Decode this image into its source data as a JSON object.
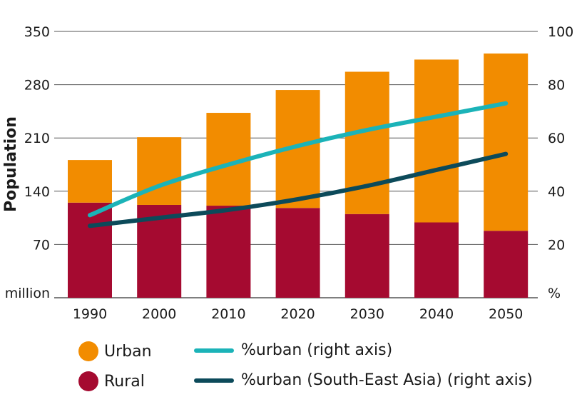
{
  "chart_data": {
    "type": "bar",
    "stacked": true,
    "categories": [
      "1990",
      "2000",
      "2010",
      "2020",
      "2030",
      "2040",
      "2050"
    ],
    "series": [
      {
        "name": "Rural",
        "kind": "bar",
        "axis": "left",
        "color": "#a50a30",
        "values": [
          125,
          122,
          121,
          118,
          110,
          99,
          88
        ]
      },
      {
        "name": "Urban",
        "kind": "bar",
        "axis": "left",
        "color": "#f28c00",
        "values": [
          56,
          89,
          122,
          155,
          187,
          214,
          233
        ]
      },
      {
        "name": "%urban (right axis)",
        "kind": "line",
        "axis": "right",
        "color": "#1bb3b8",
        "values": [
          31,
          42,
          50,
          57,
          63,
          68,
          73
        ]
      },
      {
        "name": "%urban (South-East Asia) (right axis)",
        "kind": "line",
        "axis": "right",
        "color": "#0c4a5a",
        "values": [
          27,
          30,
          33,
          37,
          42,
          48,
          54
        ]
      }
    ],
    "ylabel": "Population",
    "y_unit_label": "million",
    "y2_unit_label": "%",
    "ylim": [
      0,
      350
    ],
    "y_ticks": [
      "70",
      "140",
      "210",
      "280",
      "350"
    ],
    "y2lim": [
      0,
      100
    ],
    "y2_ticks": [
      "20",
      "40",
      "60",
      "80",
      "100"
    ],
    "grid": true,
    "legend_position": "bottom"
  },
  "legend": {
    "urban": "Urban",
    "rural": "Rural",
    "urban_pct": "%urban (right axis)",
    "urban_pct_sea": "%urban (South-East Asia) (right axis)"
  }
}
